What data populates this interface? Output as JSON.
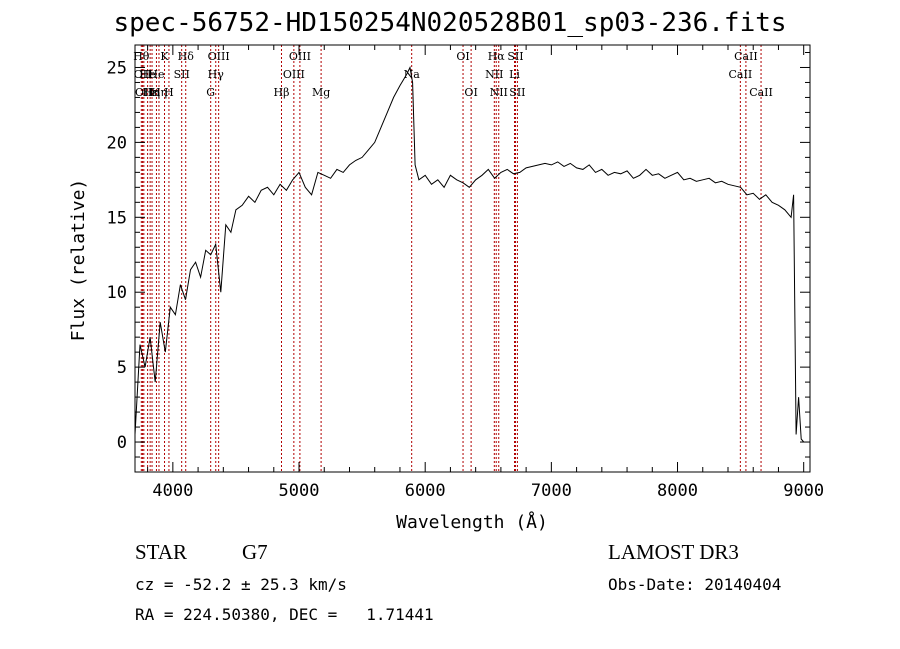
{
  "chart_data": {
    "type": "line",
    "title": "spec-56752-HD150254N020528B01_sp03-236.fits",
    "xlabel": "Wavelength (Å)",
    "ylabel": "Flux (relative)",
    "xlim": [
      3700,
      9050
    ],
    "ylim": [
      -2,
      26.5
    ],
    "xticks": [
      4000,
      5000,
      6000,
      7000,
      8000,
      9000
    ],
    "yticks": [
      0,
      5,
      10,
      15,
      20,
      25
    ],
    "series": [
      {
        "name": "flux",
        "x": [
          3700,
          3740,
          3780,
          3820,
          3860,
          3900,
          3940,
          3980,
          4020,
          4060,
          4100,
          4140,
          4180,
          4220,
          4260,
          4300,
          4340,
          4380,
          4420,
          4460,
          4500,
          4550,
          4600,
          4650,
          4700,
          4750,
          4800,
          4850,
          4900,
          4950,
          5000,
          5050,
          5100,
          5150,
          5200,
          5250,
          5300,
          5350,
          5400,
          5450,
          5500,
          5550,
          5600,
          5650,
          5700,
          5750,
          5800,
          5850,
          5880,
          5900,
          5920,
          5950,
          6000,
          6050,
          6100,
          6150,
          6200,
          6250,
          6300,
          6350,
          6400,
          6450,
          6500,
          6550,
          6600,
          6650,
          6700,
          6750,
          6800,
          6850,
          6900,
          6950,
          7000,
          7050,
          7100,
          7150,
          7200,
          7250,
          7300,
          7350,
          7400,
          7450,
          7500,
          7550,
          7600,
          7650,
          7700,
          7750,
          7800,
          7850,
          7900,
          7950,
          8000,
          8050,
          8100,
          8150,
          8200,
          8250,
          8300,
          8350,
          8400,
          8450,
          8500,
          8550,
          8600,
          8650,
          8700,
          8750,
          8800,
          8850,
          8900,
          8920,
          8940,
          8960,
          8980,
          9000
        ],
        "y": [
          0.5,
          6.5,
          5.0,
          7.0,
          4.0,
          8.0,
          6.0,
          9.0,
          8.5,
          10.5,
          9.5,
          11.5,
          12.0,
          11.0,
          12.8,
          12.5,
          13.2,
          10.0,
          14.5,
          14.0,
          15.5,
          15.8,
          16.4,
          16.0,
          16.8,
          17.0,
          16.5,
          17.2,
          16.8,
          17.5,
          18.0,
          17.0,
          16.5,
          18.0,
          17.8,
          17.6,
          18.2,
          18.0,
          18.5,
          18.8,
          19.0,
          19.5,
          20.0,
          21.0,
          22.0,
          23.0,
          23.8,
          24.5,
          25.0,
          24.0,
          18.5,
          17.5,
          17.8,
          17.2,
          17.5,
          17.0,
          17.8,
          17.5,
          17.3,
          17.0,
          17.5,
          17.8,
          18.2,
          17.6,
          18.0,
          18.2,
          17.9,
          18.0,
          18.3,
          18.4,
          18.5,
          18.6,
          18.5,
          18.7,
          18.4,
          18.6,
          18.3,
          18.2,
          18.5,
          18.0,
          18.2,
          17.8,
          18.0,
          17.9,
          18.1,
          17.6,
          17.8,
          18.2,
          17.8,
          17.9,
          17.6,
          17.8,
          18.0,
          17.5,
          17.6,
          17.4,
          17.5,
          17.6,
          17.3,
          17.4,
          17.2,
          17.1,
          17.0,
          16.5,
          16.6,
          16.2,
          16.5,
          16.0,
          15.8,
          15.5,
          15.0,
          16.5,
          0.5,
          3.0,
          0.2,
          0.0
        ]
      }
    ],
    "lines": [
      {
        "wl": 3750,
        "label": "Hθ",
        "row": 0
      },
      {
        "wl": 3760,
        "label": "OII",
        "row": 1
      },
      {
        "wl": 3770,
        "label": "OII",
        "row": 2
      },
      {
        "wl": 3800,
        "label": "He",
        "row": 1
      },
      {
        "wl": 3820,
        "label": "Hε",
        "row": 2
      },
      {
        "wl": 3835,
        "label": "Hη",
        "row": 2
      },
      {
        "wl": 3870,
        "label": "He",
        "row": 1
      },
      {
        "wl": 3890,
        "label": "Hη",
        "row": 2
      },
      {
        "wl": 3934,
        "label": "K",
        "row": 0
      },
      {
        "wl": 3969,
        "label": "H",
        "row": 2
      },
      {
        "wl": 4070,
        "label": "SII",
        "row": 1
      },
      {
        "wl": 4102,
        "label": "Hδ",
        "row": 0
      },
      {
        "wl": 4300,
        "label": "G",
        "row": 2
      },
      {
        "wl": 4340,
        "label": "Hγ",
        "row": 1
      },
      {
        "wl": 4363,
        "label": "OIII",
        "row": 0
      },
      {
        "wl": 4861,
        "label": "Hβ",
        "row": 2
      },
      {
        "wl": 4959,
        "label": "OIII",
        "row": 1
      },
      {
        "wl": 5007,
        "label": "OIII",
        "row": 0
      },
      {
        "wl": 5175,
        "label": "Mg",
        "row": 2
      },
      {
        "wl": 5893,
        "label": "Na",
        "row": 1
      },
      {
        "wl": 6300,
        "label": "OI",
        "row": 0
      },
      {
        "wl": 6364,
        "label": "OI",
        "row": 2
      },
      {
        "wl": 6548,
        "label": "NII",
        "row": 1
      },
      {
        "wl": 6563,
        "label": "Hα",
        "row": 0
      },
      {
        "wl": 6583,
        "label": "NII",
        "row": 2
      },
      {
        "wl": 6708,
        "label": "Li",
        "row": 1
      },
      {
        "wl": 6716,
        "label": "SII",
        "row": 0
      },
      {
        "wl": 6731,
        "label": "SII",
        "row": 2
      },
      {
        "wl": 8498,
        "label": "CaII",
        "row": 1
      },
      {
        "wl": 8542,
        "label": "CaII",
        "row": 0
      },
      {
        "wl": 8662,
        "label": "CaII",
        "row": 2
      }
    ]
  },
  "info": {
    "class": "STAR",
    "subclass": "G7",
    "survey": "LAMOST DR3",
    "cz": "cz = -52.2 ± 25.3 km/s",
    "coords": "RA = 224.50380, DEC =   1.71441",
    "obs_date": "Obs-Date: 20140404"
  }
}
